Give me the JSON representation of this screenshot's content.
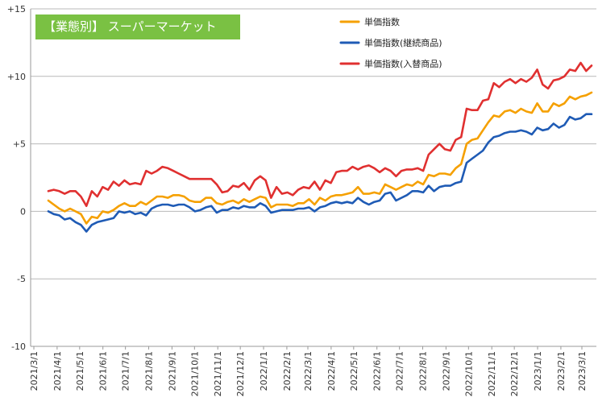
{
  "chart_data": {
    "type": "line",
    "title": "【業態別】 スーパーマーケット",
    "ylim": [
      -10,
      15
    ],
    "yticks": [
      {
        "value": 15,
        "label": "+15"
      },
      {
        "value": 10,
        "label": "+10"
      },
      {
        "value": 5,
        "label": "+5"
      },
      {
        "value": 0,
        "label": "0"
      },
      {
        "value": -5,
        "label": "-5"
      },
      {
        "value": -10,
        "label": "-10"
      }
    ],
    "grid": "horizontal",
    "legend_position": "top-right",
    "x_tick_labels": [
      "2021/3/1",
      "2021/4/1",
      "2021/5/1",
      "2021/6/1",
      "2021/7/1",
      "2021/8/1",
      "2021/9/1",
      "2021/10/1",
      "2021/11/1",
      "2021/12/1",
      "2022/1/1",
      "2022/2/1",
      "2022/3/1",
      "2022/4/1",
      "2022/5/1",
      "2022/6/1",
      "2022/7/1",
      "2022/8/1",
      "2022/9/1",
      "2022/10/1",
      "2022/11/1",
      "2022/12/1",
      "2023/1/1",
      "2023/2/1",
      "2023/3/1"
    ],
    "x_start": "2021/3/1",
    "x_end": "2023/3/1",
    "series": [
      {
        "name": "単価指数",
        "color": "#f5a000",
        "values": [
          0.8,
          0.5,
          0.2,
          0.0,
          0.2,
          0.0,
          -0.2,
          -0.9,
          -0.4,
          -0.5,
          0.0,
          -0.1,
          0.1,
          0.4,
          0.6,
          0.4,
          0.4,
          0.7,
          0.5,
          0.8,
          1.1,
          1.1,
          1.0,
          1.2,
          1.2,
          1.1,
          0.8,
          0.7,
          0.7,
          1.0,
          1.0,
          0.6,
          0.5,
          0.7,
          0.8,
          0.6,
          0.9,
          0.7,
          0.9,
          1.1,
          1.0,
          0.3,
          0.5,
          0.5,
          0.5,
          0.4,
          0.6,
          0.6,
          0.9,
          0.5,
          1.0,
          0.8,
          1.1,
          1.2,
          1.2,
          1.3,
          1.4,
          1.8,
          1.3,
          1.3,
          1.4,
          1.3,
          2.0,
          1.8,
          1.6,
          1.8,
          2.0,
          1.9,
          2.2,
          2.0,
          2.7,
          2.6,
          2.8,
          2.8,
          2.7,
          3.2,
          3.5,
          5.0,
          5.3,
          5.4,
          6.0,
          6.6,
          7.1,
          7.0,
          7.4,
          7.5,
          7.3,
          7.6,
          7.4,
          7.3,
          8.0,
          7.4,
          7.4,
          8.0,
          7.8,
          8.0,
          8.5,
          8.3,
          8.5,
          8.6,
          8.8
        ]
      },
      {
        "name": "単価指数(継続商品)",
        "color": "#1f5bb5",
        "values": [
          0.0,
          -0.2,
          -0.3,
          -0.6,
          -0.5,
          -0.8,
          -1.0,
          -1.5,
          -1.0,
          -0.8,
          -0.7,
          -0.6,
          -0.5,
          0.0,
          -0.1,
          0.0,
          -0.2,
          -0.1,
          -0.3,
          0.2,
          0.4,
          0.5,
          0.5,
          0.4,
          0.5,
          0.5,
          0.3,
          0.0,
          0.1,
          0.3,
          0.4,
          -0.1,
          0.1,
          0.1,
          0.3,
          0.2,
          0.4,
          0.3,
          0.3,
          0.6,
          0.4,
          -0.1,
          0.0,
          0.1,
          0.1,
          0.1,
          0.2,
          0.2,
          0.3,
          0.0,
          0.3,
          0.4,
          0.6,
          0.7,
          0.6,
          0.7,
          0.6,
          1.0,
          0.7,
          0.5,
          0.7,
          0.8,
          1.3,
          1.4,
          0.8,
          1.0,
          1.2,
          1.5,
          1.5,
          1.4,
          1.9,
          1.5,
          1.8,
          1.9,
          1.9,
          2.1,
          2.2,
          3.6,
          3.9,
          4.2,
          4.5,
          5.1,
          5.5,
          5.6,
          5.8,
          5.9,
          5.9,
          6.0,
          5.9,
          5.7,
          6.2,
          6.0,
          6.1,
          6.5,
          6.2,
          6.4,
          7.0,
          6.8,
          6.9,
          7.2,
          7.2
        ]
      },
      {
        "name": "単価指数(入替商品)",
        "color": "#e03030",
        "values": [
          1.5,
          1.6,
          1.5,
          1.3,
          1.5,
          1.5,
          1.1,
          0.4,
          1.5,
          1.1,
          1.8,
          1.6,
          2.2,
          1.9,
          2.3,
          2.0,
          2.1,
          2.0,
          3.0,
          2.8,
          3.0,
          3.3,
          3.2,
          3.0,
          2.8,
          2.6,
          2.4,
          2.4,
          2.4,
          2.4,
          2.4,
          2.0,
          1.4,
          1.5,
          1.9,
          1.8,
          2.1,
          1.6,
          2.3,
          2.6,
          2.3,
          1.0,
          1.8,
          1.3,
          1.4,
          1.2,
          1.6,
          1.8,
          1.7,
          2.2,
          1.6,
          2.3,
          2.1,
          2.9,
          3.0,
          3.0,
          3.3,
          3.1,
          3.3,
          3.4,
          3.2,
          2.9,
          3.2,
          3.0,
          2.6,
          3.0,
          3.1,
          3.1,
          3.2,
          3.0,
          4.2,
          4.6,
          5.0,
          4.6,
          4.5,
          5.3,
          5.5,
          7.6,
          7.5,
          7.5,
          8.2,
          8.3,
          9.5,
          9.2,
          9.6,
          9.8,
          9.5,
          9.8,
          9.6,
          9.9,
          10.5,
          9.4,
          9.1,
          9.7,
          9.8,
          10.0,
          10.5,
          10.4,
          11.0,
          10.4,
          10.8
        ]
      }
    ]
  }
}
